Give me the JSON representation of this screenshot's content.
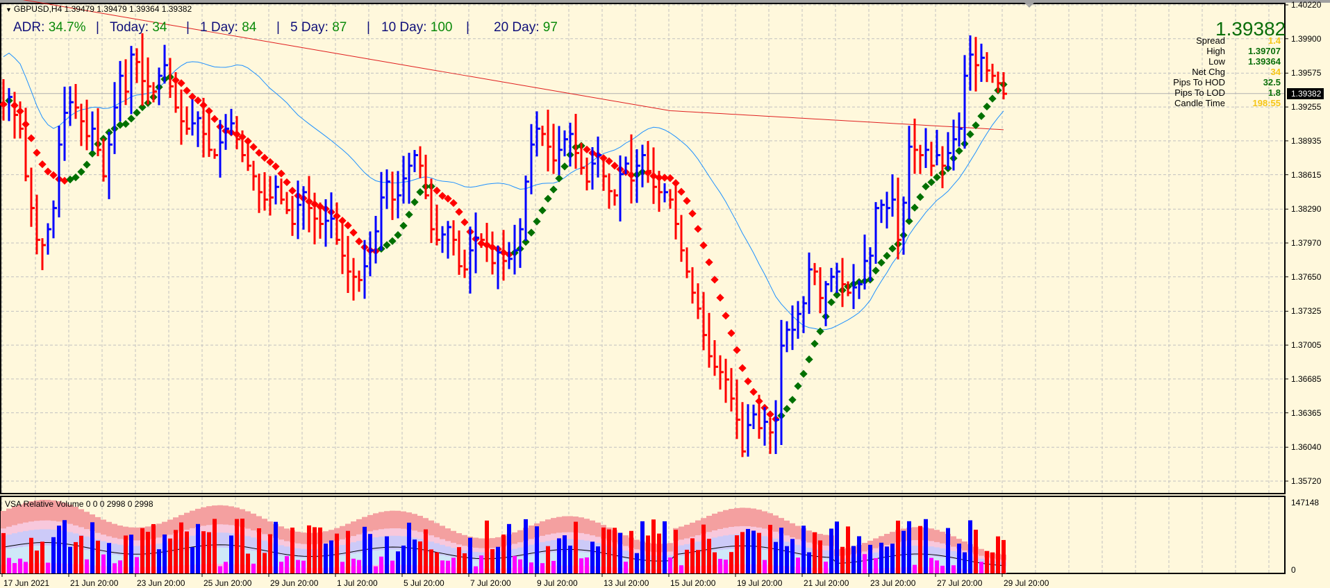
{
  "window": {
    "symbol_header": "GBPUSD,H4  1.39479 1.39479 1.39364 1.39382",
    "collapse_icon": "triangle-down-icon"
  },
  "adr_bar": {
    "adr_label": "ADR:",
    "adr_value": "34.7%",
    "sep": "|",
    "today_label": "Today:",
    "today_value": "34",
    "day1_label": "1 Day:",
    "day1_value": "84",
    "day5_label": "5 Day:",
    "day5_value": "87",
    "day10_label": "10 Day:",
    "day10_value": "100",
    "day20_label": "20 Day:",
    "day20_value": "97"
  },
  "info_panel": {
    "price": "1.39382",
    "rows": [
      {
        "label": "Spread",
        "value": "1.4",
        "color": "#f5c518"
      },
      {
        "label": "High",
        "value": "1.39707",
        "color": "#0a6e0a"
      },
      {
        "label": "Low",
        "value": "1.39364",
        "color": "#0a6e0a"
      },
      {
        "label": "Net Chg",
        "value": "34",
        "color": "#f5c518"
      },
      {
        "label": "Pips To HOD",
        "value": "32.5",
        "color": "#0a6e0a"
      },
      {
        "label": "Pips To LOD",
        "value": "1.8",
        "color": "#0a6e0a"
      },
      {
        "label": "Candle Time",
        "value": "198:55",
        "color": "#f5c518"
      }
    ]
  },
  "price_axis": {
    "labels": [
      "1.40220",
      "1.39900",
      "1.39575",
      "1.39255",
      "1.38935",
      "1.38615",
      "1.38290",
      "1.37970",
      "1.37650",
      "1.37325",
      "1.37005",
      "1.36685",
      "1.36365",
      "1.36040",
      "1.35720"
    ],
    "current": "1.39382"
  },
  "time_axis": {
    "labels": [
      "17 Jun 2021",
      "21 Jun 20:00",
      "23 Jun 20:00",
      "25 Jun 20:00",
      "29 Jun 20:00",
      "1 Jul 20:00",
      "5 Jul 20:00",
      "7 Jul 20:00",
      "9 Jul 20:00",
      "13 Jul 20:00",
      "15 Jul 20:00",
      "19 Jul 20:00",
      "21 Jul 20:00",
      "23 Jul 20:00",
      "27 Jul 20:00",
      "29 Jul 20:00"
    ]
  },
  "volume_window": {
    "title": "VSA Relative Volume 0 0 0 2998 0 2998",
    "max_label": "147148",
    "min_label": "0"
  },
  "colors": {
    "background": "#fff8dc",
    "bull_bar": "#0000ff",
    "bear_bar": "#ff0000",
    "ma_fast": "#1e90ff",
    "ma_slow": "#e02020",
    "trend_up": "#007000",
    "trend_down": "#ff0000",
    "grid": "#c0c0c0"
  },
  "chart_data": {
    "type": "ohlc",
    "title": "GBPUSD,H4",
    "ylim": [
      1.3572,
      1.4022
    ],
    "closes": [
      1.3928,
      1.3935,
      1.3918,
      1.3905,
      1.386,
      1.383,
      1.38,
      1.3795,
      1.381,
      1.383,
      1.389,
      1.392,
      1.393,
      1.3925,
      1.3912,
      1.3898,
      1.3905,
      1.3885,
      1.386,
      1.389,
      1.3925,
      1.3955,
      1.394,
      1.3975,
      1.3968,
      1.395,
      1.3945,
      1.394,
      1.3955,
      1.3965,
      1.3945,
      1.3925,
      1.3912,
      1.3905,
      1.391,
      1.3915,
      1.39,
      1.3885,
      1.388,
      1.3892,
      1.3905,
      1.391,
      1.3895,
      1.388,
      1.387,
      1.386,
      1.3845,
      1.3838,
      1.384,
      1.385,
      1.3838,
      1.3828,
      1.3815,
      1.3833,
      1.3845,
      1.383,
      1.382,
      1.3815,
      1.3818,
      1.382,
      1.38,
      1.3785,
      1.377,
      1.3765,
      1.3762,
      1.3775,
      1.379,
      1.3808,
      1.384,
      1.3855,
      1.3838,
      1.3842,
      1.3858,
      1.387,
      1.388,
      1.387,
      1.3842,
      1.381,
      1.38,
      1.3805,
      1.3812,
      1.38,
      1.3775,
      1.3772,
      1.379,
      1.3802,
      1.38,
      1.3795,
      1.3778,
      1.3788,
      1.378,
      1.3782,
      1.379,
      1.381,
      1.3855,
      1.389,
      1.3905,
      1.39,
      1.3888,
      1.3875,
      1.3885,
      1.3895,
      1.39,
      1.3882,
      1.3868,
      1.3855,
      1.3872,
      1.388,
      1.386,
      1.3846,
      1.3842,
      1.3862,
      1.3872,
      1.3856,
      1.387,
      1.388,
      1.3865,
      1.385,
      1.3845,
      1.3845,
      1.3838,
      1.3815,
      1.379,
      1.377,
      1.375,
      1.3735,
      1.371,
      1.369,
      1.368,
      1.3675,
      1.3668,
      1.365,
      1.363,
      1.36,
      1.3625,
      1.3635,
      1.3622,
      1.3628,
      1.3618,
      1.363,
      1.37,
      1.3715,
      1.3715,
      1.373,
      1.374,
      1.3772,
      1.377,
      1.3745,
      1.3758,
      1.3765,
      1.377,
      1.3758,
      1.375,
      1.3755,
      1.3758,
      1.378,
      1.3785,
      1.383,
      1.3833,
      1.383,
      1.3838,
      1.38,
      1.3835,
      1.3888,
      1.3885,
      1.388,
      1.3885,
      1.387,
      1.388,
      1.387,
      1.3882,
      1.3895,
      1.3905,
      1.3955,
      1.3975,
      1.3965,
      1.3972,
      1.396,
      1.3955,
      1.3948,
      1.3938
    ]
  }
}
